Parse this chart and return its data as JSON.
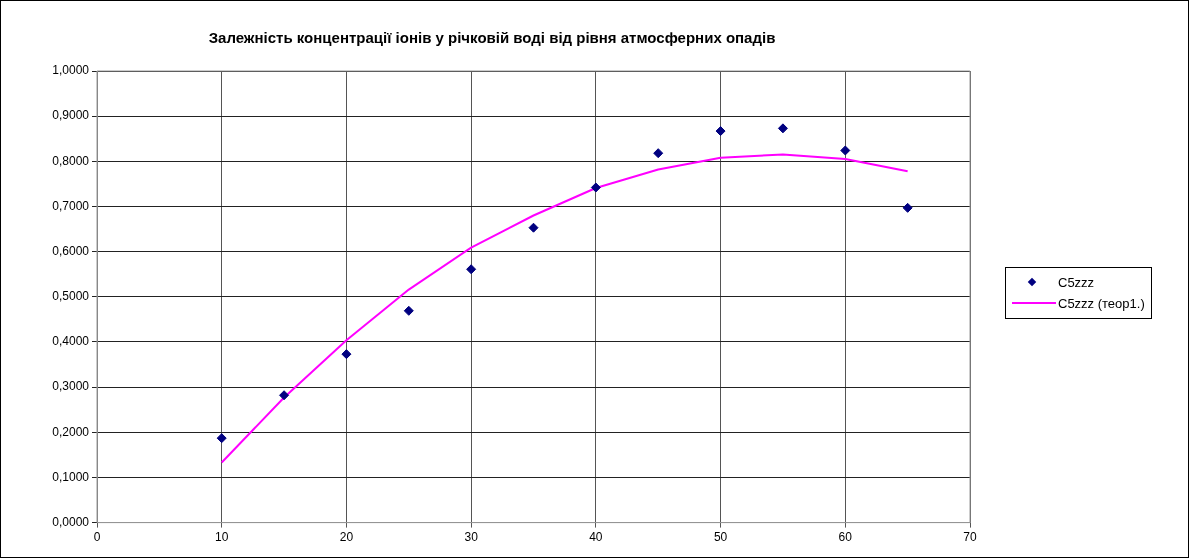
{
  "chart_data": {
    "type": "scatter",
    "title": "Залежність концентрації іонів у річковій воді від рівня атмосферних опадів",
    "x": [
      10,
      15,
      20,
      25,
      30,
      35,
      40,
      45,
      50,
      55,
      60,
      65
    ],
    "series": [
      {
        "name": "C5zzz",
        "type": "scatter",
        "marker": "diamond",
        "color": "#000080",
        "values": [
          0.187,
          0.282,
          0.373,
          0.469,
          0.561,
          0.653,
          0.742,
          0.818,
          0.867,
          0.873,
          0.824,
          0.697
        ]
      },
      {
        "name": "C5zzz (теор1.)",
        "type": "line",
        "marker": "none",
        "color": "#ff00ff",
        "values": [
          0.133,
          0.277,
          0.404,
          0.516,
          0.609,
          0.68,
          0.741,
          0.782,
          0.808,
          0.815,
          0.805,
          0.778
        ]
      }
    ],
    "xlim": [
      0,
      70
    ],
    "xticks": [
      0,
      10,
      20,
      30,
      40,
      50,
      60,
      70
    ],
    "ylim": [
      0,
      1
    ],
    "yticks": [
      {
        "value": 0,
        "label": "0,0000"
      },
      {
        "value": 0.1,
        "label": "0,1000"
      },
      {
        "value": 0.2,
        "label": "0,2000"
      },
      {
        "value": 0.3,
        "label": "0,3000"
      },
      {
        "value": 0.4,
        "label": "0,4000"
      },
      {
        "value": 0.5,
        "label": "0,5000"
      },
      {
        "value": 0.6,
        "label": "0,6000"
      },
      {
        "value": 0.7,
        "label": "0,7000"
      },
      {
        "value": 0.8,
        "label": "0,8000"
      },
      {
        "value": 0.9,
        "label": "0,9000"
      },
      {
        "value": 1,
        "label": "1,0000"
      }
    ],
    "grid": true,
    "legend": "right"
  }
}
